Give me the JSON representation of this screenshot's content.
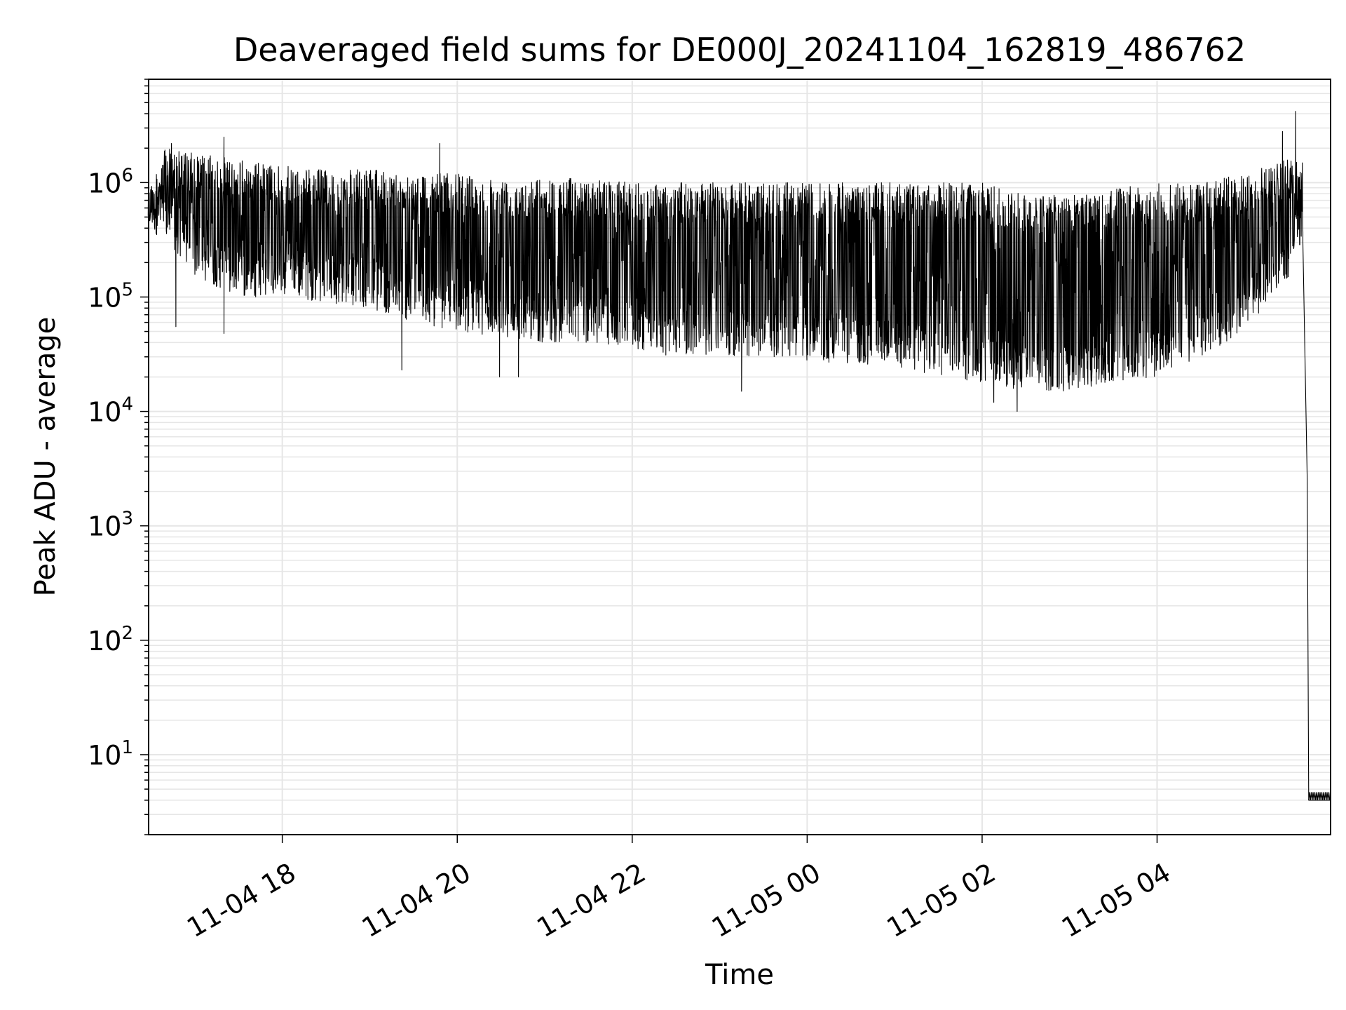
{
  "chart_data": {
    "type": "line",
    "title": "Deaveraged field sums for DE000J_20241104_162819_486762",
    "xlabel": "Time",
    "ylabel": "Peak ADU - average",
    "y_scale": "log",
    "ylim": [
      2,
      8000000
    ],
    "xlim": [
      "2024-11-04 16:28:19",
      "2024-11-05 05:59:00"
    ],
    "grid": true,
    "line_color": "#000000",
    "grid_color": "#e6e6e6",
    "x_ticks": [
      {
        "value": "2024-11-04 18:00",
        "label": "11-04 18"
      },
      {
        "value": "2024-11-04 20:00",
        "label": "11-04 20"
      },
      {
        "value": "2024-11-04 22:00",
        "label": "11-04 22"
      },
      {
        "value": "2024-11-05 00:00",
        "label": "11-05 00"
      },
      {
        "value": "2024-11-05 02:00",
        "label": "11-05 02"
      },
      {
        "value": "2024-11-05 04:00",
        "label": "11-05 04"
      }
    ],
    "y_ticks": [
      {
        "value": 10,
        "base": "10",
        "exp": "1"
      },
      {
        "value": 100,
        "base": "10",
        "exp": "2"
      },
      {
        "value": 1000,
        "base": "10",
        "exp": "3"
      },
      {
        "value": 10000,
        "base": "10",
        "exp": "4"
      },
      {
        "value": 100000,
        "base": "10",
        "exp": "5"
      },
      {
        "value": 1000000,
        "base": "10",
        "exp": "6"
      }
    ],
    "series": [
      {
        "envelope": [
          {
            "x": "2024-11-04 16:28",
            "upper": 900000,
            "lower": 400000
          },
          {
            "x": "2024-11-04 16:40",
            "upper": 2000000,
            "lower": 300000
          },
          {
            "x": "2024-11-04 17:00",
            "upper": 1800000,
            "lower": 150000
          },
          {
            "x": "2024-11-04 17:30",
            "upper": 1600000,
            "lower": 100000
          },
          {
            "x": "2024-11-04 18:00",
            "upper": 1400000,
            "lower": 100000
          },
          {
            "x": "2024-11-04 18:30",
            "upper": 1300000,
            "lower": 90000
          },
          {
            "x": "2024-11-04 19:00",
            "upper": 1300000,
            "lower": 80000
          },
          {
            "x": "2024-11-04 19:30",
            "upper": 1200000,
            "lower": 60000
          },
          {
            "x": "2024-11-04 20:00",
            "upper": 1200000,
            "lower": 50000
          },
          {
            "x": "2024-11-04 20:30",
            "upper": 1100000,
            "lower": 45000
          },
          {
            "x": "2024-11-04 21:00",
            "upper": 1100000,
            "lower": 40000
          },
          {
            "x": "2024-11-04 21:30",
            "upper": 1100000,
            "lower": 40000
          },
          {
            "x": "2024-11-04 22:00",
            "upper": 1000000,
            "lower": 35000
          },
          {
            "x": "2024-11-04 22:30",
            "upper": 1000000,
            "lower": 30000
          },
          {
            "x": "2024-11-04 23:00",
            "upper": 1000000,
            "lower": 30000
          },
          {
            "x": "2024-11-04 23:30",
            "upper": 1000000,
            "lower": 30000
          },
          {
            "x": "2024-11-05 00:00",
            "upper": 1000000,
            "lower": 28000
          },
          {
            "x": "2024-11-05 00:30",
            "upper": 1000000,
            "lower": 25000
          },
          {
            "x": "2024-11-05 01:00",
            "upper": 1000000,
            "lower": 25000
          },
          {
            "x": "2024-11-05 01:30",
            "upper": 1000000,
            "lower": 20000
          },
          {
            "x": "2024-11-05 02:00",
            "upper": 1000000,
            "lower": 18000
          },
          {
            "x": "2024-11-05 02:30",
            "upper": 800000,
            "lower": 15000
          },
          {
            "x": "2024-11-05 03:00",
            "upper": 800000,
            "lower": 15000
          },
          {
            "x": "2024-11-05 03:30",
            "upper": 900000,
            "lower": 18000
          },
          {
            "x": "2024-11-05 04:00",
            "upper": 1000000,
            "lower": 20000
          },
          {
            "x": "2024-11-05 04:30",
            "upper": 1000000,
            "lower": 30000
          },
          {
            "x": "2024-11-05 05:00",
            "upper": 1200000,
            "lower": 50000
          },
          {
            "x": "2024-11-05 05:30",
            "upper": 1600000,
            "lower": 150000
          },
          {
            "x": "2024-11-05 05:40",
            "upper": 1500000,
            "lower": 300000
          }
        ],
        "spikes_up": [
          {
            "x": "2024-11-04 16:44",
            "y": 2200000
          },
          {
            "x": "2024-11-04 17:20",
            "y": 2500000
          },
          {
            "x": "2024-11-04 19:48",
            "y": 2200000
          },
          {
            "x": "2024-11-05 05:26",
            "y": 2800000
          },
          {
            "x": "2024-11-05 05:35",
            "y": 4200000
          }
        ],
        "spikes_down": [
          {
            "x": "2024-11-04 16:47",
            "y": 55000
          },
          {
            "x": "2024-11-04 17:20",
            "y": 48000
          },
          {
            "x": "2024-11-04 19:22",
            "y": 23000
          },
          {
            "x": "2024-11-04 20:29",
            "y": 20000
          },
          {
            "x": "2024-11-04 20:42",
            "y": 20000
          },
          {
            "x": "2024-11-04 23:15",
            "y": 15000
          },
          {
            "x": "2024-11-05 02:24",
            "y": 10000
          },
          {
            "x": "2024-11-05 02:08",
            "y": 12000
          }
        ],
        "dropoff": [
          {
            "x": "2024-11-05 05:40",
            "y": 300000
          },
          {
            "x": "2024-11-05 05:43",
            "y": 2500
          },
          {
            "x": "2024-11-05 05:44",
            "y": 4
          },
          {
            "x": "2024-11-05 05:59",
            "y": 4
          }
        ]
      }
    ]
  }
}
